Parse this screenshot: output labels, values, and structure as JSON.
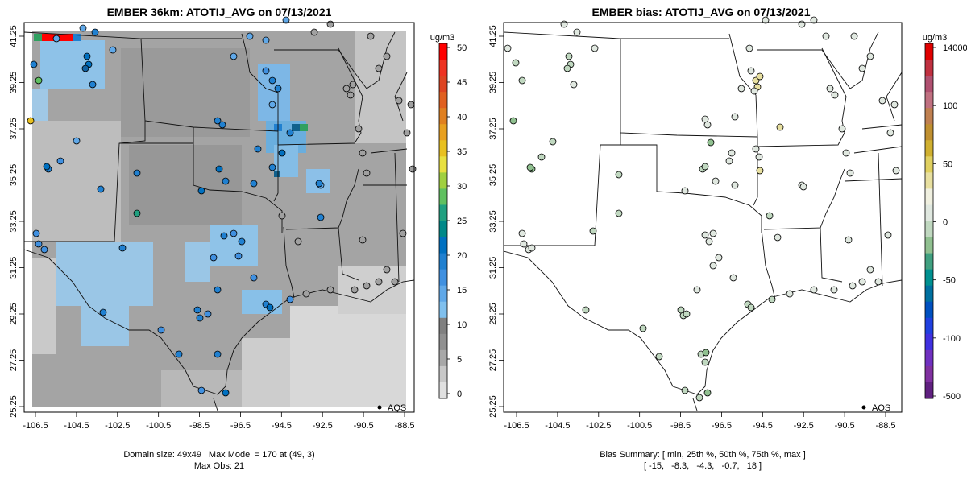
{
  "left_panel": {
    "title": "EMBER 36km: ATOTIJ_AVG on 07/13/2021",
    "footer_line1": "Domain size: 49x49 | Max Model = 170 at (49, 3)",
    "footer_line2": "Max Obs: 21",
    "legend_label": "AQS",
    "colorbar": {
      "unit": "ug/m3",
      "ticks": [
        "50",
        "45",
        "40",
        "35",
        "30",
        "25",
        "20",
        "15",
        "10",
        "5",
        "0"
      ],
      "colors": [
        "#ff0000",
        "#ee3322",
        "#dd4422",
        "#e06020",
        "#e08020",
        "#e8a020",
        "#e8c020",
        "#e8e040",
        "#a0d040",
        "#60c060",
        "#20a080",
        "#008888",
        "#0070c0",
        "#2080d0",
        "#4090e0",
        "#60a8e8",
        "#80c0ee",
        "#808080",
        "#909090",
        "#a8a8a8",
        "#c8c8c8",
        "#e0e0e0"
      ]
    }
  },
  "right_panel": {
    "title": "EMBER bias: ATOTIJ_AVG on 07/13/2021",
    "footer_line1": "Bias Summary: [ min, 25th %, 50th %, 75th %, max ]",
    "footer_line2": "[ -15,   -8.3,   -4.3,   -0.7,   18 ]",
    "legend_label": "AQS",
    "colorbar": {
      "unit": "ug/m3",
      "ticks": [
        "14000",
        "100",
        "50",
        "0",
        "-50",
        "-100",
        "-500"
      ],
      "colors": [
        "#e00000",
        "#c03040",
        "#b05070",
        "#c07080",
        "#c08050",
        "#c09030",
        "#d0b030",
        "#e0d060",
        "#e8e0a0",
        "#f0f0e0",
        "#e0e8e0",
        "#c0d8c0",
        "#90c090",
        "#40a080",
        "#009090",
        "#0070a0",
        "#0050c0",
        "#2040e0",
        "#4030e0",
        "#7030c0",
        "#8030a0",
        "#602080"
      ]
    }
  },
  "axes": {
    "x_ticks": [
      "-106.5",
      "-104.5",
      "-102.5",
      "-100.5",
      "-98.5",
      "-96.5",
      "-94.5",
      "-92.5",
      "-90.5",
      "-88.5"
    ],
    "y_ticks": [
      "41.25",
      "39.25",
      "37.25",
      "35.25",
      "33.25",
      "31.25",
      "29.25",
      "27.25",
      "25.25"
    ]
  }
}
